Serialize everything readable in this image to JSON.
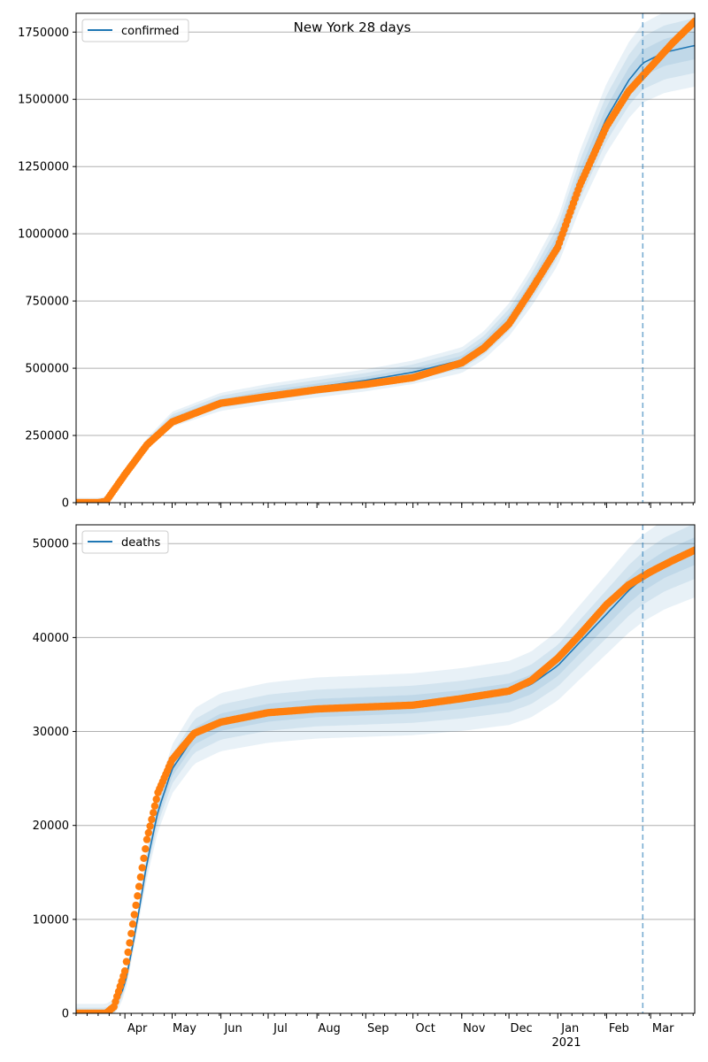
{
  "figure": {
    "title": "New York 28 days",
    "year_label": "2021",
    "colors": {
      "model_line": "#1f77b4",
      "observed": "#ff7f0e",
      "band": "#1f77b4",
      "vline": "#1f77b4",
      "grid": "#b0b0b0"
    }
  },
  "chart_data": [
    {
      "type": "line",
      "panel": "top",
      "legend": [
        "confirmed"
      ],
      "legend_position": "top-left",
      "grid": "horizontal",
      "x_range": [
        "2020-03-01",
        "2021-03-29"
      ],
      "ylim": [
        0,
        1820000
      ],
      "yticks": [
        0,
        250000,
        500000,
        750000,
        1000000,
        1250000,
        1500000,
        1750000
      ],
      "forecast_start": "2021-02-24",
      "model": {
        "name": "confirmed",
        "x": [
          "2020-03-01",
          "2020-03-15",
          "2020-03-20",
          "2020-04-01",
          "2020-04-15",
          "2020-05-01",
          "2020-06-01",
          "2020-07-01",
          "2020-08-01",
          "2020-09-01",
          "2020-10-01",
          "2020-11-01",
          "2020-11-15",
          "2020-12-01",
          "2020-12-15",
          "2021-01-01",
          "2021-01-15",
          "2021-02-01",
          "2021-02-15",
          "2021-02-24",
          "2021-03-10",
          "2021-03-29"
        ],
        "y": [
          0,
          0,
          5000,
          110000,
          220000,
          310000,
          375000,
          405000,
          430000,
          455000,
          485000,
          530000,
          585000,
          680000,
          800000,
          970000,
          1200000,
          1430000,
          1570000,
          1635000,
          1675000,
          1700000
        ]
      },
      "bands": [
        {
          "spread_pct": 3,
          "min_abs": 6000
        },
        {
          "spread_pct": 6,
          "min_abs": 12000
        },
        {
          "spread_pct": 9,
          "min_abs": 18000
        }
      ],
      "observed": {
        "x": [
          "2020-03-01",
          "2020-03-15",
          "2020-03-20",
          "2020-04-01",
          "2020-04-15",
          "2020-05-01",
          "2020-06-01",
          "2020-07-01",
          "2020-08-01",
          "2020-09-01",
          "2020-10-01",
          "2020-11-01",
          "2020-11-15",
          "2020-12-01",
          "2020-12-15",
          "2021-01-01",
          "2021-01-15",
          "2021-02-01",
          "2021-02-15",
          "2021-03-01",
          "2021-03-15",
          "2021-03-29"
        ],
        "y": [
          0,
          0,
          5000,
          105000,
          215000,
          300000,
          370000,
          395000,
          420000,
          440000,
          465000,
          520000,
          575000,
          665000,
          790000,
          950000,
          1180000,
          1400000,
          1530000,
          1620000,
          1710000,
          1790000
        ]
      }
    },
    {
      "type": "line",
      "panel": "bottom",
      "legend": [
        "deaths"
      ],
      "legend_position": "top-left",
      "grid": "horizontal",
      "x_range": [
        "2020-03-01",
        "2021-03-29"
      ],
      "ylim": [
        0,
        52000
      ],
      "yticks": [
        0,
        10000,
        20000,
        30000,
        40000,
        50000
      ],
      "forecast_start": "2021-02-24",
      "xticks": [
        "Apr",
        "May",
        "Jun",
        "Jul",
        "Aug",
        "Sep",
        "Oct",
        "Nov",
        "Dec",
        "Jan",
        "Feb",
        "Mar"
      ],
      "xtick_dates": [
        "2020-04-01",
        "2020-05-01",
        "2020-06-01",
        "2020-07-01",
        "2020-08-01",
        "2020-09-01",
        "2020-10-01",
        "2020-11-01",
        "2020-12-01",
        "2021-01-01",
        "2021-02-01",
        "2021-03-01"
      ],
      "model": {
        "name": "deaths",
        "x": [
          "2020-03-01",
          "2020-03-20",
          "2020-03-25",
          "2020-04-01",
          "2020-04-08",
          "2020-04-15",
          "2020-04-22",
          "2020-05-01",
          "2020-05-15",
          "2020-06-01",
          "2020-07-01",
          "2020-08-01",
          "2020-09-01",
          "2020-10-01",
          "2020-11-01",
          "2020-12-01",
          "2020-12-15",
          "2021-01-01",
          "2021-01-15",
          "2021-02-01",
          "2021-02-15",
          "2021-02-24",
          "2021-03-10",
          "2021-03-29"
        ],
        "y": [
          0,
          0,
          500,
          3000,
          9000,
          16000,
          21500,
          26000,
          29500,
          31000,
          32000,
          32500,
          32700,
          32900,
          33400,
          34100,
          35000,
          37000,
          39500,
          42500,
          45000,
          46300,
          47800,
          49200
        ]
      },
      "bands": [
        {
          "spread_pct": 3,
          "min_abs": 300
        },
        {
          "spread_pct": 6,
          "min_abs": 600
        },
        {
          "spread_pct": 10,
          "min_abs": 1000
        }
      ],
      "observed": {
        "x": [
          "2020-03-01",
          "2020-03-20",
          "2020-03-25",
          "2020-04-01",
          "2020-04-08",
          "2020-04-15",
          "2020-04-22",
          "2020-05-01",
          "2020-05-15",
          "2020-06-01",
          "2020-07-01",
          "2020-08-01",
          "2020-09-01",
          "2020-10-01",
          "2020-11-01",
          "2020-12-01",
          "2020-12-15",
          "2021-01-01",
          "2021-01-15",
          "2021-02-01",
          "2021-02-15",
          "2021-03-01",
          "2021-03-15",
          "2021-03-29"
        ],
        "y": [
          0,
          0,
          700,
          4500,
          11500,
          18500,
          23500,
          27000,
          29800,
          31000,
          32000,
          32400,
          32600,
          32800,
          33500,
          34300,
          35400,
          37800,
          40300,
          43500,
          45600,
          47000,
          48200,
          49300
        ]
      }
    }
  ]
}
